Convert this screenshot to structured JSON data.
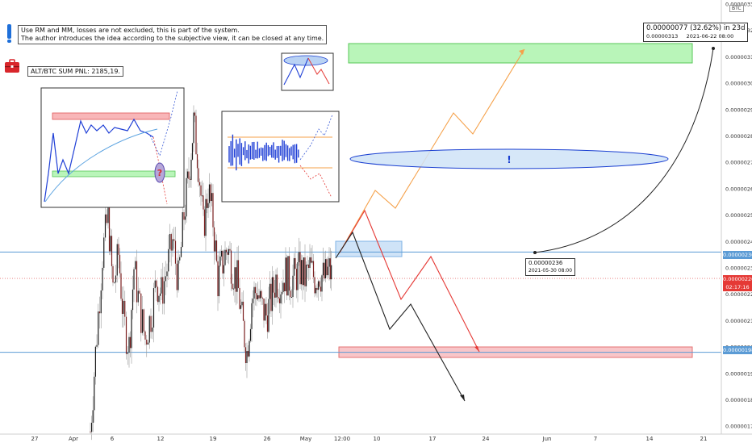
{
  "notes": {
    "line1": "Use RM and MM, losses are not excluded, this is part of the system.",
    "line2": "The author introduces the idea according to the subjective view, it can be closed at any time.",
    "pnl": "ALT/BTC SUM PNL: 2185,19."
  },
  "ticker": "BTC",
  "callouts": {
    "top_main": "0.00000077 (32.62%) in 23d",
    "top_price": "0.00000313",
    "top_date": "2021-06-22 08:00",
    "mid_price": "0.00000236",
    "mid_date": "2021-05-30 08:00"
  },
  "price_tags": {
    "level_236": "0.00000236",
    "current_price": "0.00000226",
    "countdown": "02:17:16",
    "level_198": "0.00000198"
  },
  "icons": {
    "briefcase": "briefcase-icon",
    "exclamation": "!",
    "question": "?"
  },
  "colors": {
    "up_candle": "#1b1b1b",
    "down_candle": "#7a1f1f",
    "orange_path": "#f5a14a",
    "red_path": "#e53935",
    "black_path": "#222222",
    "green_zone": "#b9f5b9",
    "red_zone": "#f8c6c9",
    "blue_zone": "#cfe3f7",
    "ellipse": "#1a3fd1",
    "level_line": "#5b9bd5"
  },
  "chart_data": {
    "type": "candlestick",
    "symbol": "ALT/BTC",
    "y_axis": {
      "ticks": [
        "0.00000330",
        "0.00000320",
        "0.00000310",
        "0.00000300",
        "0.00000290",
        "0.00000280",
        "0.00000270",
        "0.00000260",
        "0.00000250",
        "0.00000240",
        "0.00000230",
        "0.00000220",
        "0.00000210",
        "0.00000200",
        "0.00000190",
        "0.00000180",
        "0.00000170"
      ],
      "range": [
        1.7e-06,
        3.31e-06
      ]
    },
    "x_axis": {
      "ticks": [
        "27",
        "Apr",
        "6",
        "12",
        "19",
        "26",
        "May",
        "12:00",
        "10",
        "17",
        "24",
        "Jun",
        "7",
        "14",
        "21"
      ]
    },
    "levels": [
      2.36e-06,
      1.98e-06
    ],
    "current_price": 2.26e-06,
    "zones": [
      {
        "name": "target-green",
        "from": 3.09e-06,
        "to": 3.16e-06
      },
      {
        "name": "stop-red",
        "from": 1.96e-06,
        "to": 2e-06
      },
      {
        "name": "entry-blue",
        "from": 2.36e-06,
        "to": 2.42e-06
      }
    ],
    "measure": {
      "from": 2.36e-06,
      "to": 3.13e-06,
      "change": "0.00000077 (32.62%) in 23d"
    }
  }
}
